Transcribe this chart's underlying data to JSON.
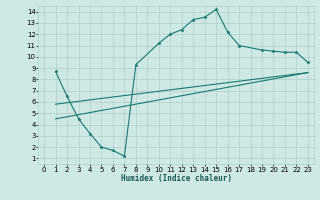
{
  "title": "",
  "xlabel": "Humidex (Indice chaleur)",
  "bg_color": "#cde8e5",
  "grid_color": "#b0d0cc",
  "line_color": "#1a7a6e",
  "xlim": [
    -0.5,
    23.5
  ],
  "ylim": [
    0.5,
    14.5
  ],
  "xticks": [
    0,
    1,
    2,
    3,
    4,
    5,
    6,
    7,
    8,
    9,
    10,
    11,
    12,
    13,
    14,
    15,
    16,
    17,
    18,
    19,
    20,
    21,
    22,
    23
  ],
  "yticks": [
    1,
    2,
    3,
    4,
    5,
    6,
    7,
    8,
    9,
    10,
    11,
    12,
    13,
    14
  ],
  "curve1_x": [
    1,
    2,
    3,
    4,
    5,
    6,
    7,
    8,
    10,
    11,
    12,
    13,
    14,
    15,
    16,
    17,
    19,
    20,
    21,
    22,
    23
  ],
  "curve1_y": [
    8.7,
    6.5,
    4.5,
    3.2,
    2.0,
    1.7,
    1.2,
    9.3,
    11.2,
    12.0,
    12.4,
    13.3,
    13.5,
    14.2,
    12.2,
    11.0,
    10.6,
    10.5,
    10.4,
    10.4,
    9.5
  ],
  "line1_x": [
    1,
    23
  ],
  "line1_y": [
    5.8,
    8.6
  ],
  "line2_x": [
    1,
    23
  ],
  "line2_y": [
    4.5,
    8.6
  ]
}
